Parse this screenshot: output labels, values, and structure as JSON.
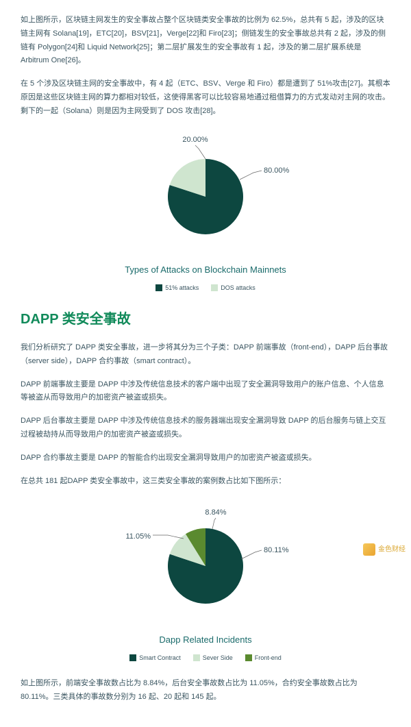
{
  "para1": "如上图所示，区块链主网发生的安全事故占整个区块链类安全事故的比例为 62.5%，总共有 5 起，涉及的区块链主网有 Solana[19]，ETC[20]，BSV[21]，Verge[22]和 Firo[23]；侧链发生的安全事故总共有 2 起，涉及的侧链有 Polygon[24]和 Liquid Network[25]；第二层扩展发生的安全事故有 1 起，涉及的第二层扩展系统是 Arbitrum One[26]。",
  "para2": "在 5 个涉及区块链主网的安全事故中，有 4 起（ETC、BSV、Verge 和 Firo）都是遭到了 51%攻击[27]。其根本原因是这些区块链主网的算力都相对较低，这使得黑客可以比较容易地通过租借算力的方式发动对主网的攻击。剩下的一起（Solana）则是因为主网受到了 DOS 攻击[28]。",
  "chart1": {
    "title": "Types of Attacks on Blockchain Mainnets",
    "slices": [
      {
        "label": "51% attacks",
        "value": 80.0,
        "color": "#0d4740",
        "display": "80.00%"
      },
      {
        "label": "DOS attacks",
        "value": 20.0,
        "color": "#cfe5cf",
        "display": "20.00%"
      }
    ],
    "legend_colors": {
      "a": "#0d4740",
      "b": "#cfe5cf"
    },
    "bg": "#ffffff"
  },
  "heading": "DAPP 类安全事故",
  "para3": "我们分析研究了 DAPP 类安全事故，进一步将其分为三个子类：DAPP 前端事故（front-end），DAPP 后台事故（server side），DAPP 合约事故（smart contract）。",
  "para4": "DAPP 前端事故主要是 DAPP 中涉及传统信息技术的客户端中出现了安全漏洞导致用户的账户信息、个人信息等被盗从而导致用户的加密资产被盗或损失。",
  "para5": "DAPP 后台事故主要是 DAPP 中涉及传统信息技术的服务器端出现安全漏洞导致 DAPP 的后台服务与链上交互过程被劫持从而导致用户的加密资产被盗或损失。",
  "para6": "DAPP 合约事故主要是 DAPP 的智能合约出现安全漏洞导致用户的加密资产被盗或损失。",
  "para7": "在总共 181 起DAPP 类安全事故中，这三类安全事故的案例数占比如下图所示：",
  "chart2": {
    "title": "Dapp Related Incidents",
    "slices": [
      {
        "label": "Smart Contract",
        "value": 80.11,
        "color": "#0d4740",
        "display": "80.11%"
      },
      {
        "label": "Sever Side",
        "value": 11.05,
        "color": "#cfe5cf",
        "display": "11.05%"
      },
      {
        "label": "Front-end",
        "value": 8.84,
        "color": "#5a8a2f",
        "display": "8.84%"
      }
    ],
    "bg": "#ffffff"
  },
  "para8": "如上图所示，前端安全事故数占比为 8.84%，后台安全事故数占比为 11.05%，合约安全事故数占比为 80.11%。三类具体的事故数分别为 16 起、20 起和 145 起。",
  "watermark": "金色财经"
}
